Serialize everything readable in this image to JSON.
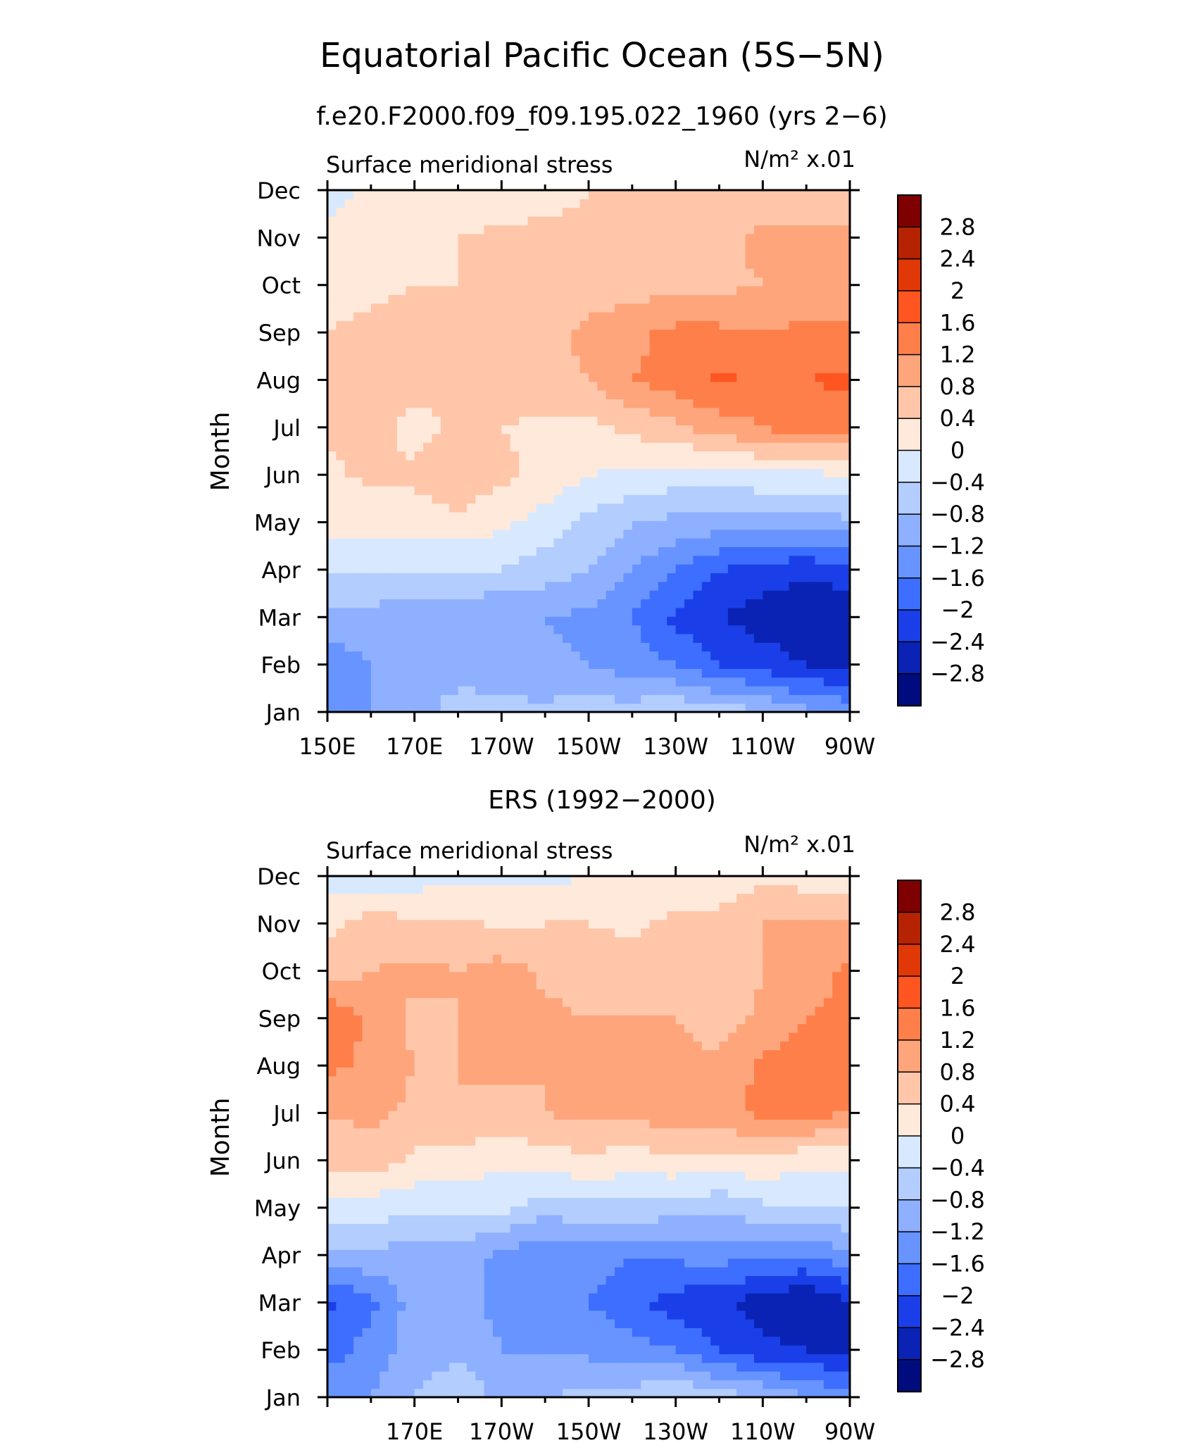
{
  "figure": {
    "title": "Equatorial Pacific Ocean (5S−5N)",
    "subtitle": "f.e20.F2000.f09_f09.195.022_1960 (yrs 2−6)",
    "second_subtitle": "ERS (1992−2000)"
  },
  "palette": {
    "levels": [
      "2.8",
      "2.4",
      "2",
      "1.6",
      "1.2",
      "0.8",
      "0.4",
      "0",
      "−0.4",
      "−0.8",
      "−1.2",
      "−1.6",
      "−2",
      "−2.4",
      "−2.8"
    ],
    "colors": [
      "#7f0000",
      "#b52302",
      "#e03806",
      "#ff5520",
      "#ff7f4a",
      "#ffa57c",
      "#ffc6aa",
      "#ffe9da",
      "#d8e9ff",
      "#b3cdff",
      "#8eb0ff",
      "#6794ff",
      "#3d6eff",
      "#1a3fe8",
      "#0a23b4",
      "#000c7e"
    ]
  },
  "chart_data": [
    {
      "type": "heatmap",
      "panel_label": "Surface meridional stress",
      "units_label": "N/m² x.01",
      "ylabel": "Month",
      "x_ticklabels": [
        "150E",
        "170E",
        "170W",
        "150W",
        "130W",
        "110W",
        "90W"
      ],
      "y_ticklabels": [
        "Jan",
        "Feb",
        "Mar",
        "Apr",
        "May",
        "Jun",
        "Jul",
        "Aug",
        "Sep",
        "Oct",
        "Nov",
        "Dec"
      ],
      "x_longitudes": [
        150,
        160,
        170,
        180,
        190,
        200,
        210,
        220,
        230,
        240,
        250,
        260,
        270
      ],
      "values": [
        [
          -1.6,
          -1.2,
          -1.0,
          -0.6,
          -0.7,
          -0.7,
          -0.6,
          -0.6,
          -0.4,
          -0.6,
          -0.7,
          -1.1,
          -1.3
        ],
        [
          -1.4,
          -1.2,
          -1.0,
          -1.0,
          -1.0,
          -1.1,
          -1.2,
          -1.4,
          -1.6,
          -2.0,
          -2.2,
          -2.4,
          -2.6
        ],
        [
          -1.0,
          -1.0,
          -1.0,
          -1.1,
          -1.2,
          -1.2,
          -1.3,
          -1.6,
          -2.1,
          -2.4,
          -2.6,
          -2.7,
          -2.7
        ],
        [
          -0.3,
          -0.3,
          -0.4,
          -0.4,
          -0.4,
          -0.6,
          -0.8,
          -1.2,
          -1.6,
          -2.0,
          -2.2,
          -2.3,
          -2.2
        ],
        [
          0.1,
          0.1,
          0.2,
          0.3,
          0.1,
          -0.2,
          -0.5,
          -0.8,
          -0.9,
          -1.0,
          -1.0,
          -1.0,
          -0.9
        ],
        [
          0.3,
          0.5,
          0.5,
          0.7,
          0.5,
          0.3,
          0.0,
          -0.1,
          -0.2,
          -0.2,
          -0.1,
          -0.1,
          0.0
        ],
        [
          0.5,
          0.6,
          0.2,
          0.5,
          0.4,
          0.3,
          0.3,
          0.5,
          0.7,
          1.0,
          1.2,
          1.4,
          1.3
        ],
        [
          0.8,
          0.7,
          0.6,
          0.6,
          0.6,
          0.7,
          0.8,
          1.2,
          1.4,
          1.7,
          1.5,
          1.6,
          1.7
        ],
        [
          0.4,
          0.5,
          0.6,
          0.6,
          0.6,
          0.7,
          0.9,
          1.1,
          1.3,
          1.3,
          1.2,
          1.3,
          1.3
        ],
        [
          0.3,
          0.3,
          0.4,
          0.4,
          0.5,
          0.5,
          0.6,
          0.6,
          0.7,
          0.7,
          0.8,
          0.9,
          0.9
        ],
        [
          0.2,
          0.2,
          0.3,
          0.4,
          0.5,
          0.6,
          0.6,
          0.6,
          0.7,
          0.7,
          0.9,
          0.9,
          0.9
        ],
        [
          -0.2,
          0.1,
          0.1,
          0.1,
          0.1,
          0.1,
          0.4,
          0.4,
          0.6,
          0.6,
          0.5,
          0.5,
          0.5
        ]
      ]
    },
    {
      "type": "heatmap",
      "panel_label": "Surface meridional stress",
      "units_label": "N/m² x.01",
      "ylabel": "Month",
      "x_ticklabels": [
        "170E",
        "170W",
        "150W",
        "130W",
        "110W",
        "90W"
      ],
      "y_ticklabels": [
        "Jan",
        "Feb",
        "Mar",
        "Apr",
        "May",
        "Jun",
        "Jul",
        "Aug",
        "Sep",
        "Oct",
        "Nov",
        "Dec"
      ],
      "x_longitudes": [
        150,
        160,
        170,
        180,
        190,
        200,
        210,
        220,
        230,
        240,
        250,
        260,
        270
      ],
      "values": [
        [
          -1.3,
          -1.2,
          -0.8,
          -0.5,
          -0.9,
          -0.8,
          -0.7,
          -0.6,
          -0.3,
          -0.6,
          -0.8,
          -1.2,
          -1.4
        ],
        [
          -1.8,
          -1.4,
          -1.0,
          -0.9,
          -1.2,
          -1.2,
          -1.3,
          -1.4,
          -1.6,
          -2.0,
          -2.3,
          -2.4,
          -2.4
        ],
        [
          -2.1,
          -1.7,
          -1.0,
          -1.1,
          -1.3,
          -1.5,
          -1.6,
          -1.9,
          -2.2,
          -2.3,
          -2.6,
          -2.8,
          -2.5
        ],
        [
          -0.9,
          -0.9,
          -1.0,
          -1.0,
          -1.3,
          -1.6,
          -1.4,
          -1.6,
          -1.5,
          -1.4,
          -1.6,
          -1.6,
          -1.3
        ],
        [
          -0.2,
          -0.2,
          -0.3,
          -0.3,
          -0.3,
          -0.6,
          -0.5,
          -0.5,
          -0.6,
          -0.7,
          -0.5,
          -0.4,
          -0.4
        ],
        [
          0.6,
          0.6,
          0.3,
          0.2,
          0.1,
          0.2,
          0.3,
          0.2,
          0.3,
          0.2,
          0.3,
          0.1,
          0.1
        ],
        [
          0.8,
          0.9,
          0.7,
          0.8,
          0.6,
          0.8,
          0.9,
          0.9,
          1.1,
          1.1,
          1.3,
          1.3,
          1.2
        ],
        [
          1.3,
          1.1,
          0.8,
          0.8,
          0.9,
          0.8,
          0.9,
          0.9,
          0.9,
          0.9,
          1.3,
          1.4,
          1.3
        ],
        [
          1.6,
          1.1,
          0.7,
          0.8,
          1.0,
          0.9,
          0.8,
          0.8,
          0.8,
          0.6,
          0.9,
          1.2,
          1.3
        ],
        [
          0.5,
          0.8,
          0.9,
          0.8,
          1.0,
          0.7,
          0.6,
          0.7,
          0.5,
          0.5,
          0.8,
          1.0,
          1.3
        ],
        [
          0.3,
          0.6,
          0.5,
          0.5,
          0.3,
          0.4,
          0.4,
          0.3,
          0.5,
          0.5,
          0.8,
          0.9,
          0.8
        ],
        [
          -0.2,
          -0.4,
          -0.2,
          -0.1,
          -0.1,
          -0.1,
          0.0,
          0.1,
          0.1,
          0.2,
          0.3,
          0.2,
          0.1
        ]
      ]
    }
  ]
}
